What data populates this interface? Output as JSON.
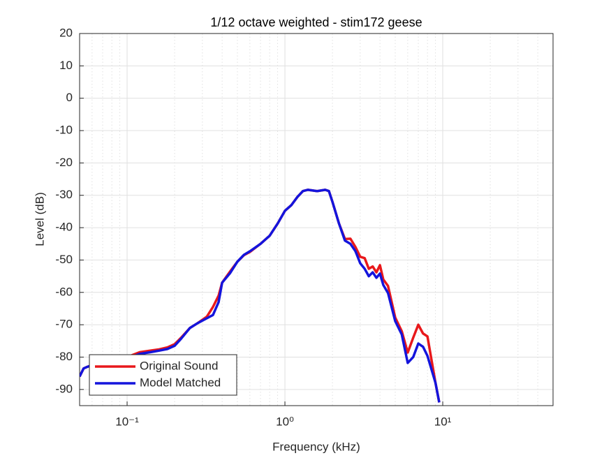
{
  "chart_data": {
    "type": "line",
    "title": "1/12 octave weighted - stim172 geese",
    "x_label": "Frequency (kHz)",
    "y_label": "Level (dB)",
    "x_scale": "log",
    "xlim": [
      0.05,
      50
    ],
    "ylim": [
      -95,
      20
    ],
    "xticks": [
      {
        "value": 0.1,
        "label": "10⁻¹"
      },
      {
        "value": 1,
        "label": "10⁰"
      },
      {
        "value": 10,
        "label": "10¹"
      }
    ],
    "xminorticks": [
      0.05,
      0.06,
      0.07,
      0.08,
      0.09,
      0.2,
      0.3,
      0.4,
      0.5,
      0.6,
      0.7,
      0.8,
      0.9,
      2,
      3,
      4,
      5,
      6,
      7,
      8,
      9,
      20,
      30,
      40,
      50
    ],
    "yticks": [
      -90,
      -80,
      -70,
      -60,
      -50,
      -40,
      -30,
      -20,
      -10,
      0,
      10,
      20
    ],
    "grid": true,
    "minor_grid": true,
    "legend": "lower left",
    "x": [
      0.05,
      0.053,
      0.056,
      0.06,
      0.07,
      0.08,
      0.09,
      0.1,
      0.12,
      0.14,
      0.16,
      0.18,
      0.2,
      0.22,
      0.25,
      0.28,
      0.32,
      0.35,
      0.38,
      0.4,
      0.45,
      0.5,
      0.55,
      0.6,
      0.7,
      0.8,
      0.9,
      1.0,
      1.1,
      1.2,
      1.3,
      1.4,
      1.6,
      1.8,
      1.9,
      2.0,
      2.2,
      2.4,
      2.6,
      2.8,
      3.0,
      3.2,
      3.4,
      3.6,
      3.8,
      4.0,
      4.2,
      4.5,
      5.0,
      5.5,
      6.0,
      6.5,
      7.0,
      7.5,
      8.0,
      9.0,
      9.5
    ],
    "series": [
      {
        "name": "Original Sound",
        "color": "#e8181b",
        "values": [
          -86,
          -83.5,
          -83,
          -82.5,
          -82,
          -81.5,
          -81,
          -80,
          -78.5,
          -78,
          -77.6,
          -77,
          -76,
          -74,
          -71,
          -69.5,
          -67.5,
          -64.5,
          -61,
          -57,
          -53.5,
          -50.5,
          -48.5,
          -47.5,
          -45,
          -42.5,
          -38.7,
          -34.8,
          -33,
          -30.5,
          -28.7,
          -28.3,
          -28.7,
          -28.3,
          -28.7,
          -32,
          -38.7,
          -43.5,
          -43.4,
          -46,
          -49,
          -49.4,
          -52.7,
          -52,
          -53.8,
          -51.6,
          -56,
          -58,
          -67.8,
          -72,
          -78.6,
          -74,
          -70,
          -72.7,
          -73.6,
          -88,
          -94
        ]
      },
      {
        "name": "Model Matched",
        "color": "#1414dc",
        "values": [
          -86,
          -83.5,
          -83,
          -82.5,
          -82,
          -81.5,
          -81,
          -80.5,
          -79,
          -78.5,
          -78,
          -77.5,
          -76.5,
          -74.3,
          -71,
          -69.5,
          -68,
          -67,
          -63,
          -57,
          -54,
          -50.5,
          -48.4,
          -47.3,
          -45,
          -42.5,
          -38.7,
          -34.8,
          -33,
          -30.5,
          -28.7,
          -28.3,
          -28.7,
          -28.3,
          -28.7,
          -32,
          -38.7,
          -44,
          -45,
          -47.3,
          -51,
          -52.7,
          -55,
          -53.8,
          -55.5,
          -54.2,
          -57.7,
          -60.2,
          -68.9,
          -73,
          -81.8,
          -80,
          -75.8,
          -76.8,
          -79.6,
          -88,
          -94
        ]
      }
    ]
  }
}
